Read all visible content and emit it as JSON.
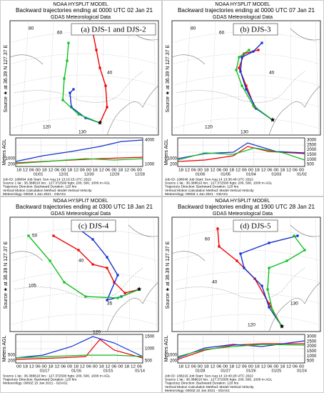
{
  "panels": [
    {
      "model": "NOAA HYSPLIT MODEL",
      "title": "Backward trajectories ending at 0000 UTC 02 Jan 21",
      "met": "GDAS Meteorological Data",
      "label": "(a) DJS-1 and DJS-2",
      "side": "Source ★ at 36.39 N 127.37 E",
      "height_axis": "Meters AGL",
      "right_ticks": [
        4000,
        1000
      ],
      "left_ticks": [
        1000,
        200
      ],
      "hours": "18 12 06 00 18 12 06 00 18 12 06 00 18 12 06 00 18 12 06 00",
      "dates": [
        "01/01",
        "12/31",
        "12/30",
        "12/29",
        "12/28"
      ],
      "map_labels": [
        "80",
        "60",
        "40",
        "120",
        "130"
      ],
      "footer": [
        "Job ID: 188094     Job Start: Sun Aug 14 13:15:15 UTC 2022",
        "Source 1 lat.: 36.388610  lon.: 127.372500  hgts: 200, 500, 1000 m AGL",
        "Trajectory Direction: Backward      Duration: 120 hrs",
        "Vertical Motion Calculation Method:      Model Vertical Velocity",
        "Meteorology: 0000Z 1 Jan 2021 - GDAS1"
      ]
    },
    {
      "model": "NOAA HYSPLIT MODEL",
      "title": "Backward trajectories ending at 0000 UTC 07 Jan 21",
      "met": "GDAS Meteorological Data",
      "label": "(b) DJS-3",
      "side": "Source ★ at 36.39 N 127.37 E",
      "height_axis": "Meters AGL",
      "right_ticks": [
        3000,
        2500,
        2000,
        1500,
        1000,
        500
      ],
      "left_ticks": [
        1000,
        200
      ],
      "hours": "18 12 06 00 18 12 06 00 18 12 06 00 18 12 06 00 18 12 06 00",
      "dates": [
        "01/06",
        "01/05",
        "01/04",
        "01/03",
        "01/02"
      ],
      "map_labels": [
        "80",
        "60",
        "40",
        "120",
        "130"
      ],
      "footer": [
        "Job ID: 188046     Job Start: Sun Aug 14 13:36:49 UTC 2022",
        "Source 1 lat.: 36.388610  lon.: 127.372500  hgts: 200, 500, 1000 m AGL",
        "Trajectory Direction: Backward      Duration: 120 hrs",
        "Vertical Motion Calculation Method:      Model Vertical Velocity",
        "Meteorology: 0000Z 1 Jan 2021 - GDAS1"
      ]
    },
    {
      "model": "NOAA HYSPLIT MODEL",
      "title": "Backward trajectories ending at 0300 UTC 18 Jan 21",
      "met": "GDAS Meteorological Data",
      "label": "(c) DJS-4",
      "side": "Source ★ at 36.39 N 127.37 E",
      "height_axis": "Meters AGL",
      "right_ticks": [
        1500,
        1000,
        500
      ],
      "left_ticks": [
        500,
        200
      ],
      "hours": "00 18 12 06 00 18 12 06 00 18 12 06 00 18 12 06 00 18 12 06",
      "dates": [
        "01/17",
        "01/16",
        "01/15",
        "01/14"
      ],
      "map_labels": [
        "50",
        "40",
        "35",
        "105",
        "120"
      ],
      "footer": [
        "Source 1 lat.: 36.388610  lon.: 127.372500  hgts: 200, 500, 1000 m AGL",
        "Trajectory Direction: Backward      Duration: 120 hrs",
        "Meteorology: 0000Z 15 Jan 2021 - GDAS1"
      ]
    },
    {
      "model": "NOAA HYSPLIT MODEL",
      "title": "Backward trajectories ending at 1900 UTC 28 Jan 21",
      "met": "GDAS Meteorological Data",
      "label": "(d) DJS-5",
      "side": "Source ★ at 36.39 N 127.37 E",
      "height_axis": "Meters AGL",
      "right_ticks": [
        3000,
        2500,
        2000,
        1500,
        1000,
        500
      ],
      "left_ticks": [
        1000,
        200
      ],
      "hours": "18 12 06 00 18 12 06 00 18 12 06 00 18 12 06 00 18 12 06 00",
      "dates": [
        "01/28",
        "01/27",
        "01/26",
        "01/25",
        "01/24"
      ],
      "map_labels": [
        "60",
        "40",
        "120",
        "130"
      ],
      "footer": [
        "Job ID: 188216     Job Start: Sun Aug 14 13:40:28 UTC 2022",
        "Source 1 lat.: 36.388610  lon.: 127.372500  hgts: 200, 500, 1000 m AGL",
        "Trajectory Direction: Backward      Duration: 120 hrs",
        "Vertical Motion Calculation Method:      Model Vertical Velocity",
        "Meteorology: 0000Z 22 Jan 2021 - GDAS1"
      ]
    }
  ]
}
